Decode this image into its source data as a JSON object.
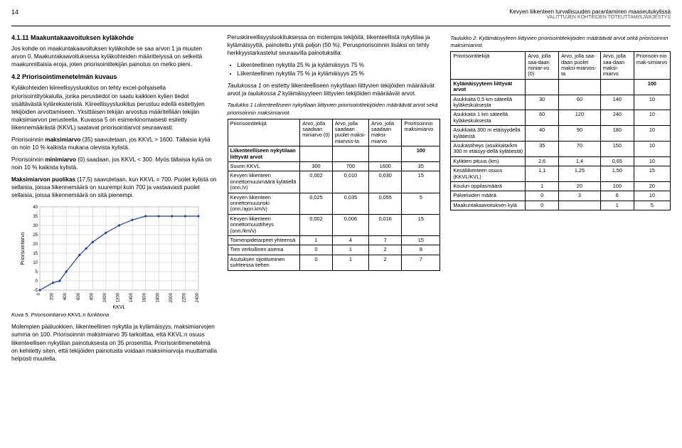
{
  "header": {
    "page": "14",
    "line1": "Kevyen liikenteen turvallisuuden parantaminen maaseutukylissä",
    "line2": "VALITTUJEN KOHTEIDEN TOTEUTTAMISJÄRJESTYS"
  },
  "col1": {
    "h1": "4.1.11 Maakuntakaavoituksen kyläkohde",
    "p1": "Jos kohde on maakuntakaavoituksen kyläkohde se saa arvon 1 ja muuten arvon 0. Maakuntakaavoituksessa kyläkohteiden määrittelyssä on selkeitä maakunnittaisia eroja, joten priorisointitekijän painotus on melko pieni.",
    "h2": "4.2 Priorisointimenetelmän kuvaus",
    "p2": "Kyläkohteiden kiireellisyysluokitus on tehty excel-pohjaisella priorisointityökalulla, jonka perustiedot on saatu kaikkien kylien tiedot sisältävästä kylärekisteristä. Kiireellisyysluokitus perustuu edellä esitettyjen tekijöiden arvottamiseen. Yksittäisen tekijän arvostus määritellään tekijän maksimiarvon perusteella. Kuvassa 5 on esimerkinomaisesti esitetty liikennemäärästä (KKVL) saatavat priorisointiarvot seuraavasti:",
    "p3a": "Priorisoinnin ",
    "p3b": "maksimiarvo",
    "p3c": " (35) saavutetaan, jos KKVL > 1600. Tällaisia kyliä on noin 10 % kaikista mukana olevista kylistä.",
    "p4a": "Priorisoinnin ",
    "p4b": "minimiarvo",
    "p4c": " (0) saadaan, jos KKVL < 300. Myös tällaisia kyliä on noin 10 % kaikista kylistä.",
    "p5a": "Maksimiarvon puolikas",
    "p5b": " (17,5) saavutetaan, kun KKVL = 700. Puolet kylistä on sellaisia, joissa liikennemäärä on suurempi kuin 700 ja vastaavasti puolet sellaisia, joissa liikennemäärä on sitä pienempi.",
    "caption": "Kuva 5.   Priorisointiarvo KKVL:n funktiona",
    "p6": "Molempien pääluokkien, liikenteellinen nykytila ja kylämäisyys, maksimiarvojen summa on 100. Priorisoinnin maksimiarvo 35 tarkoittaa, että KKVL:n osuus liikenteellisen nykytilan painotuksesta on 35 prosenttia. Priorisointimenetelmä on kehitetty siten, että tekijöiden painotusta voidaan maksimiarvoja muuttamalla helposti muutella."
  },
  "chart": {
    "ylabel": "Priorisointiarvo",
    "xlabel": "KKVL",
    "yticks": [
      -5,
      0,
      5,
      10,
      15,
      20,
      25,
      30,
      35,
      40
    ],
    "xticks": [
      0,
      200,
      400,
      600,
      800,
      1000,
      1200,
      1400,
      1600,
      1800,
      2000,
      2200,
      2400
    ],
    "points": [
      [
        0,
        -5
      ],
      [
        200,
        -1
      ],
      [
        300,
        0
      ],
      [
        400,
        5
      ],
      [
        600,
        14
      ],
      [
        700,
        17.5
      ],
      [
        800,
        21
      ],
      [
        1000,
        26
      ],
      [
        1200,
        30
      ],
      [
        1400,
        33
      ],
      [
        1600,
        35
      ],
      [
        1800,
        35
      ],
      [
        2000,
        35
      ],
      [
        2200,
        35
      ],
      [
        2400,
        35
      ]
    ],
    "line_color": "#1f3a93",
    "marker_color": "#1f3a93",
    "grid_color": "#bfbfbf",
    "background": "#ffffff",
    "ylim": [
      -5,
      40
    ]
  },
  "col2": {
    "p1": "Peruskiireellisyysluokituksessa on molempia tekijöitä, liikenteellistä nykytilaa ja kylämäisyyttä, painotettu yhtä paljon (50 %). Peruspriorisoinnin lisäksi on tehty herkkyystarkastelut seuraavilla painotuksilla:",
    "li1": "Liikenteellinen nykytila 25 % ja kylämäisyys 75 %",
    "li2": "Liikenteellinen nykytila 75 % ja kylämäisyys 25 %",
    "p2a": "Taulukossa 1",
    "p2b": " on esitetty liikenteelliseen nykytilaan liittyvien tekijöiden määräävät arvot ja ",
    "p2c": "taulukossa 2",
    "p2d": " kylämäisyyteen liittyvien tekijöiden määräävät arvot.",
    "t1cap": "Taulukko 1   Liikenteelliseen nykytilaan liittyvien priorisointitekijöiden määräävät arvot sekä priorisoinnin maksimiarvot.",
    "t1": {
      "h": [
        "Priorisointitekijä",
        "Arvo, jolla saadaan miniarvo (0)",
        "Arvo, jolla saadaan puolet maksi-miarvos-ta",
        "Arvo, jolla saadaan maksi-miarvo",
        "Priorisoinnin maksimiarvo"
      ],
      "rowTitle": [
        "Liikenteelliseen nykytilaan liittyvät arvot",
        "",
        "",
        "",
        "100"
      ],
      "rows": [
        [
          "Suurin KKVL",
          "300",
          "700",
          "1600",
          "35"
        ],
        [
          "Kevyen liikenteen onnettomuusmäärä kylätiellä (onn./v)",
          "0,002",
          "0,010",
          "0,030",
          "15"
        ],
        [
          "Kevyen liikenteen onnettomuusriski (onn./ajon.km/v)",
          "0,025",
          "0,035",
          "0,055",
          "5"
        ],
        [
          "Kevyen liikenteen onnettomuustiheys (onn./km/v)",
          "0,002",
          "0,006",
          "0,016",
          "15"
        ],
        [
          "Toimenpidetarpeet yhteensä",
          "1",
          "4",
          "7",
          "15"
        ],
        [
          "Tien verkollinen asema",
          "0",
          "1",
          "2",
          "8"
        ],
        [
          "Asutuksen sijoittuminen suhteessa tiehen",
          "0",
          "1",
          "2",
          "7"
        ]
      ]
    }
  },
  "col3": {
    "t2cap": "Taulukko 2:  Kylämäisyyteen liittyvien priorisointitekijöiden määräävät arvot sekä priorisoinnin maksimiarvot.",
    "t2": {
      "h": [
        "Priorisointitekijä",
        "Arvo, jolla saa-daan miniar-vo (0)",
        "Arvo, jolla saa-daan puolet maksi-miarvos-ta",
        "Arvo, jolla saa-daan maksi-miarvo",
        "Priorisoin-nin mak-simiarvo"
      ],
      "rowTitle": [
        "Kylämäisyyteen liittyvät arvot",
        "",
        "",
        "",
        "100"
      ],
      "rows": [
        [
          "Asukkaita 0,5 km säteellä kyläkeskuksesta",
          "30",
          "60",
          "140",
          "10"
        ],
        [
          "Asukkaita 1 km säteellä kyläkeskuksesta",
          "60",
          "120",
          "240",
          "10"
        ],
        [
          "Asukkaita 300 m etäisyydellä kylätiestä",
          "40",
          "90",
          "180",
          "10"
        ],
        [
          "Asukastiheys (asukkaita/km 300 m etäisyy-dellä kylätiestä)",
          "35",
          "70",
          "150",
          "10"
        ],
        [
          "Kylätien pituus (km)",
          "2,6",
          "1,4",
          "0,65",
          "10"
        ],
        [
          "Kesäliikenteen osuus (KKVL/KVL)",
          "1,1",
          "1,25",
          "1,50",
          "15"
        ],
        [
          "Koulun oppilasmäärä",
          "1",
          "20",
          "100",
          "20"
        ],
        [
          "Palveluiden määrä",
          "0",
          "3",
          "6",
          "10"
        ],
        [
          "Maakuntakaavoituksen kylä",
          "0",
          "",
          "1",
          "5"
        ]
      ]
    }
  }
}
